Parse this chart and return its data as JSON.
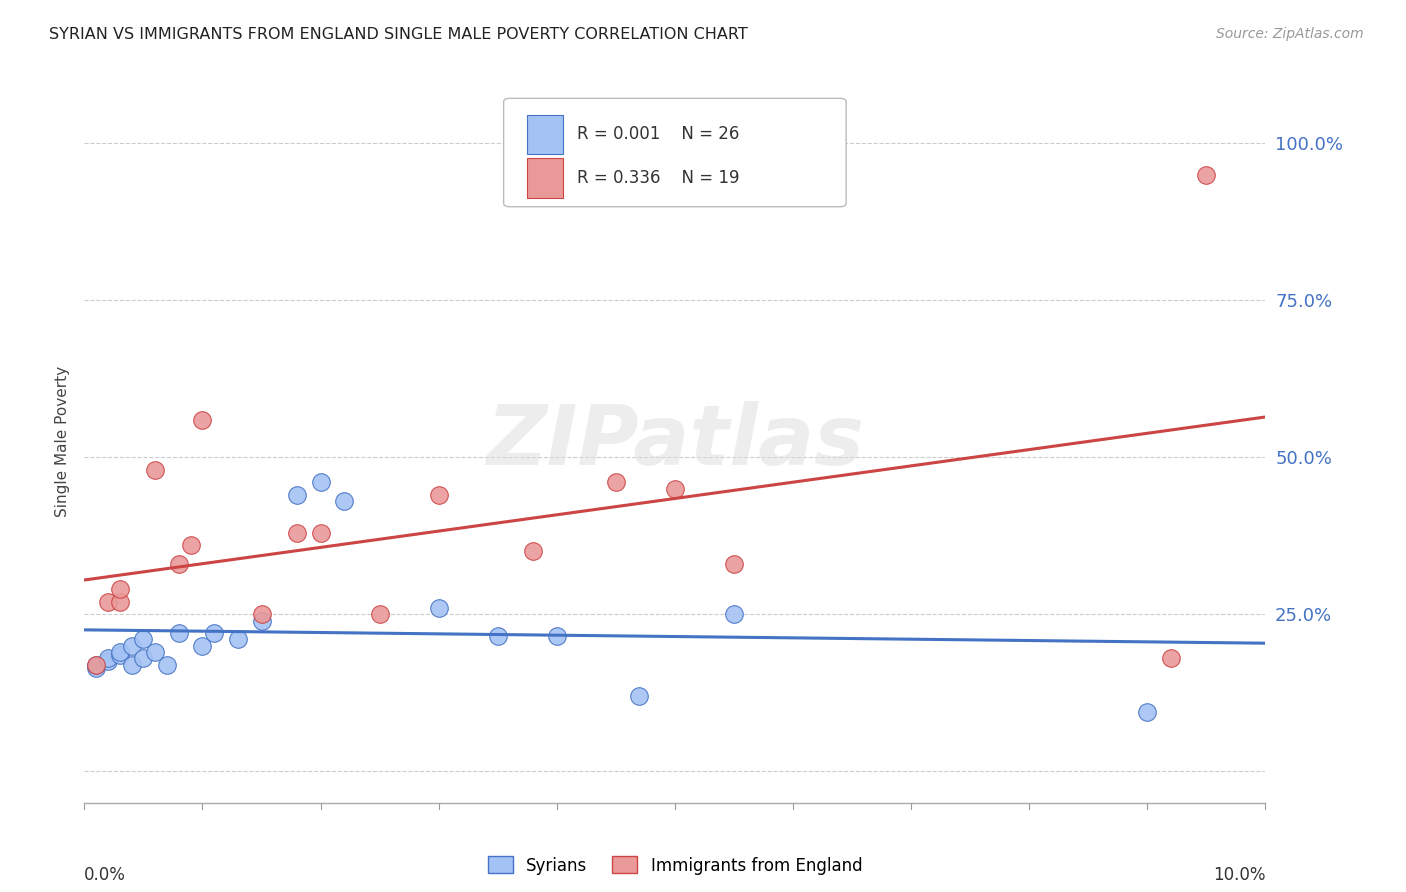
{
  "title": "SYRIAN VS IMMIGRANTS FROM ENGLAND SINGLE MALE POVERTY CORRELATION CHART",
  "source": "Source: ZipAtlas.com",
  "ylabel": "Single Male Poverty",
  "yticks": [
    0.0,
    0.25,
    0.5,
    0.75,
    1.0
  ],
  "ytick_labels": [
    "",
    "25.0%",
    "50.0%",
    "75.0%",
    "100.0%"
  ],
  "xmin": 0.0,
  "xmax": 0.1,
  "ymin": -0.05,
  "ymax": 1.1,
  "syrians_x": [
    0.001,
    0.001,
    0.002,
    0.002,
    0.003,
    0.003,
    0.004,
    0.004,
    0.005,
    0.005,
    0.006,
    0.007,
    0.008,
    0.01,
    0.011,
    0.013,
    0.015,
    0.018,
    0.02,
    0.022,
    0.03,
    0.035,
    0.04,
    0.047,
    0.055,
    0.09
  ],
  "syrians_y": [
    0.165,
    0.17,
    0.175,
    0.18,
    0.185,
    0.19,
    0.17,
    0.2,
    0.18,
    0.21,
    0.19,
    0.17,
    0.22,
    0.2,
    0.22,
    0.21,
    0.24,
    0.44,
    0.46,
    0.43,
    0.26,
    0.215,
    0.215,
    0.12,
    0.25,
    0.095
  ],
  "england_x": [
    0.001,
    0.002,
    0.003,
    0.003,
    0.006,
    0.008,
    0.009,
    0.01,
    0.015,
    0.018,
    0.02,
    0.025,
    0.03,
    0.038,
    0.045,
    0.05,
    0.055,
    0.092,
    0.095
  ],
  "england_y": [
    0.17,
    0.27,
    0.27,
    0.29,
    0.48,
    0.33,
    0.36,
    0.56,
    0.25,
    0.38,
    0.38,
    0.25,
    0.44,
    0.35,
    0.46,
    0.45,
    0.33,
    0.18,
    0.95
  ],
  "syrians_color": "#a4c2f4",
  "england_color": "#ea9999",
  "syrians_line_color": "#4472c4",
  "england_line_color": "#cc4444",
  "legend_R_syrians": "R = 0.001",
  "legend_N_syrians": "N = 26",
  "legend_R_england": "R = 0.336",
  "legend_N_england": "N = 19",
  "watermark": "ZIPatlas",
  "background_color": "#ffffff",
  "grid_color": "#cccccc",
  "tick_label_color": "#4472c4",
  "title_color": "#222222"
}
